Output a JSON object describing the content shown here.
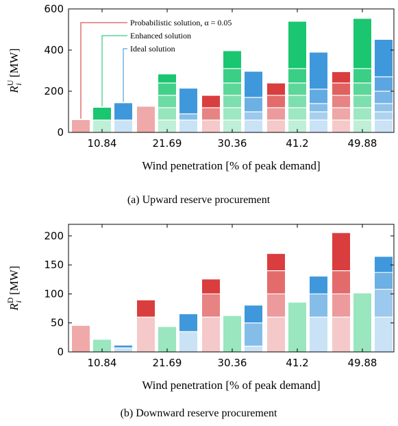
{
  "chart_data": [
    {
      "type": "bar",
      "title": "",
      "caption": "(a) Upward reserve procurement",
      "xlabel": "Wind penetration [% of peak demand]",
      "ylabel_main": "R",
      "ylabel_sup": "U",
      "ylabel_sub": "i",
      "ylabel_unit": " [MW]",
      "categories": [
        "10.84",
        "21.69",
        "30.36",
        "41.2",
        "49.88"
      ],
      "ylim": [
        0,
        600
      ],
      "yticks": [
        "0",
        "200",
        "400",
        "600"
      ],
      "grid": false,
      "legend": {
        "placement": "top-left",
        "items": [
          "Probabilistic solution, α = 0.05",
          "Enhanced solution",
          "Ideal solution"
        ]
      },
      "series": [
        {
          "name": "Probabilistic solution, α = 0.05",
          "color": "#d62728",
          "values": [
            60,
            125,
            178,
            238,
            293
          ],
          "segments": [
            [
              60
            ],
            [
              125
            ],
            [
              60,
              120,
              178
            ],
            [
              60,
              120,
              180,
              238
            ],
            [
              60,
              120,
              180,
              240,
              293
            ]
          ]
        },
        {
          "name": "Enhanced solution",
          "color": "#00c060",
          "values": [
            120,
            282,
            395,
            538,
            552
          ],
          "segments": [
            [
              60,
              120
            ],
            [
              60,
              120,
              180,
              240,
              282
            ],
            [
              60,
              120,
              180,
              240,
              310,
              395
            ],
            [
              60,
              120,
              180,
              240,
              310,
              538
            ],
            [
              60,
              120,
              180,
              240,
              310,
              552
            ]
          ]
        },
        {
          "name": "Ideal solution",
          "color": "#2a8cd8",
          "values": [
            142,
            213,
            295,
            388,
            450
          ],
          "segments": [
            [
              60,
              142
            ],
            [
              60,
              90,
              213
            ],
            [
              60,
              100,
              170,
              295
            ],
            [
              60,
              100,
              140,
              210,
              388
            ],
            [
              60,
              100,
              140,
              200,
              270,
              450
            ]
          ]
        }
      ]
    },
    {
      "type": "bar",
      "title": "",
      "caption": "(b) Downward reserve procurement",
      "xlabel": "Wind penetration [% of peak demand]",
      "ylabel_main": "R",
      "ylabel_sup": "D",
      "ylabel_sub": "i",
      "ylabel_unit": " [MW]",
      "categories": [
        "10.84",
        "21.69",
        "30.36",
        "41.2",
        "49.88"
      ],
      "ylim": [
        0,
        220
      ],
      "yticks": [
        "0",
        "50",
        "100",
        "150",
        "200"
      ],
      "grid": false,
      "series": [
        {
          "name": "Probabilistic solution, α = 0.05",
          "color": "#d62728",
          "values": [
            45,
            89,
            125,
            169,
            205
          ],
          "segments": [
            [
              45
            ],
            [
              60,
              89
            ],
            [
              60,
              100,
              125
            ],
            [
              60,
              100,
              140,
              169
            ],
            [
              60,
              100,
              140,
              205
            ]
          ]
        },
        {
          "name": "Enhanced solution",
          "color": "#00c060",
          "values": [
            21,
            43,
            62,
            85,
            101
          ],
          "segments": [
            [
              21
            ],
            [
              43
            ],
            [
              62
            ],
            [
              85
            ],
            [
              101
            ]
          ]
        },
        {
          "name": "Ideal solution",
          "color": "#2a8cd8",
          "values": [
            11,
            65,
            80,
            130,
            164
          ],
          "segments": [
            [
              7,
              11
            ],
            [
              35,
              65
            ],
            [
              10,
              50,
              80
            ],
            [
              60,
              100,
              130
            ],
            [
              60,
              108,
              137,
              164
            ]
          ]
        }
      ]
    }
  ]
}
